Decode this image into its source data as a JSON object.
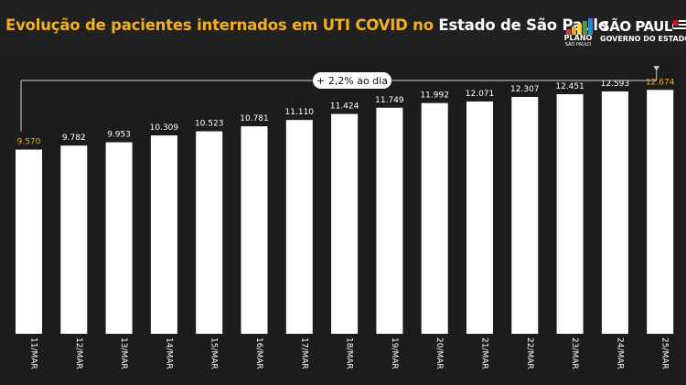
{
  "header": {
    "title_part1": "Evolução de pacientes internados em UTI COVID no",
    "title_part2": "Estado de São Paulo",
    "plan_logo_name": "PLANO",
    "plan_logo_sub": "SÃO PAULO",
    "gov_logo_name": "SÃO PAULO",
    "gov_logo_sub": "GOVERNO DO ESTADO"
  },
  "colors": {
    "background": "#1c1c1c",
    "bar": "#ffffff",
    "label": "#ffffff",
    "highlight_label": "#f2b01e",
    "title_highlight": "#f2b01e"
  },
  "chart_data": {
    "type": "bar",
    "categories": [
      "11/MAR",
      "12/MAR",
      "13/MAR",
      "14/MAR",
      "15/MAR",
      "16/MAR",
      "17/MAR",
      "18/MAR",
      "19/MAR",
      "20/MAR",
      "21/MAR",
      "22/MAR",
      "23/MAR",
      "24/MAR",
      "25/MAR"
    ],
    "values": [
      9570,
      9782,
      9953,
      10309,
      10523,
      10781,
      11110,
      11424,
      11749,
      11992,
      12071,
      12307,
      12451,
      12593,
      12674
    ],
    "value_labels": [
      "9.570",
      "9.782",
      "9.953",
      "10.309",
      "10.523",
      "10.781",
      "11.110",
      "11.424",
      "11.749",
      "11.992",
      "12.071",
      "12.307",
      "12.451",
      "12.593",
      "12.674"
    ],
    "highlighted_labels": [
      0,
      14
    ],
    "annotation": "+ 2,2% ao dia",
    "ylim": [
      0,
      14400
    ],
    "grid": false,
    "legend": "none"
  }
}
